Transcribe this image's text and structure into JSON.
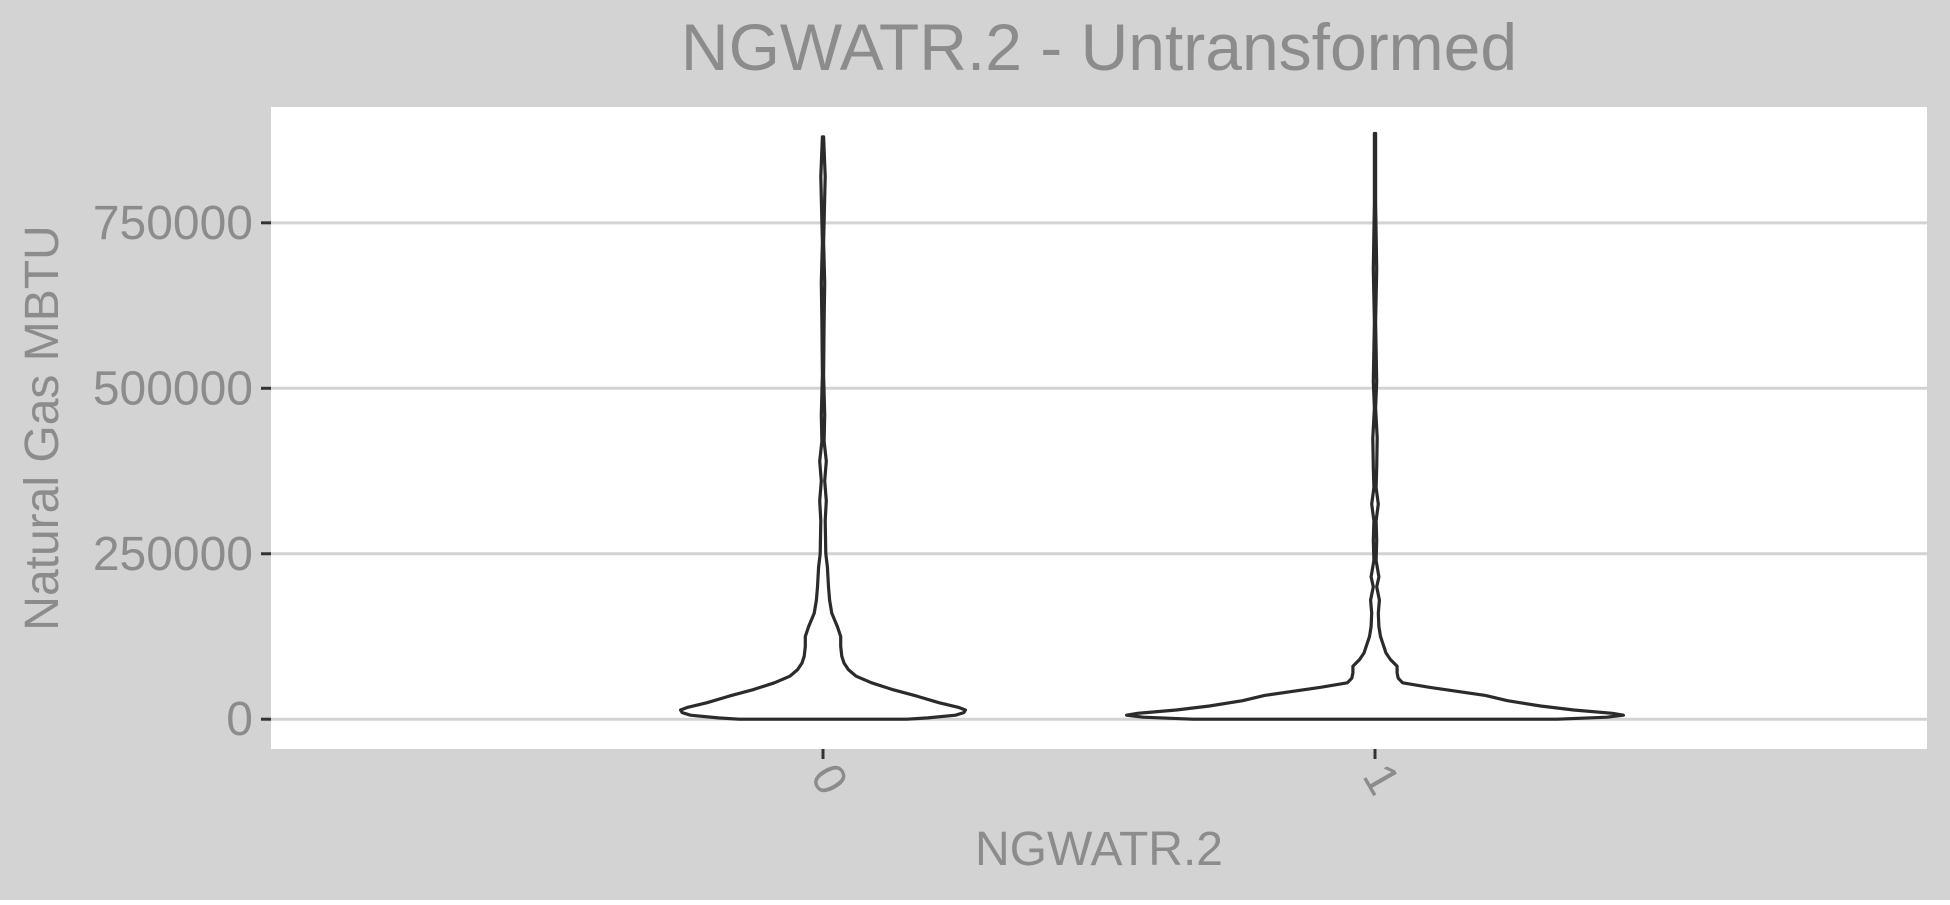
{
  "chart_data": {
    "type": "violin",
    "title": "NGWATR.2 - Untransformed",
    "xlabel": "NGWATR.2",
    "ylabel": "Natural Gas MBTU",
    "categories": [
      "0",
      "1"
    ],
    "yticks": [
      0,
      250000,
      500000,
      750000
    ],
    "ytick_labels": [
      "0",
      "250000",
      "500000",
      "750000"
    ],
    "ylim": [
      -45000,
      925000
    ],
    "grid": true,
    "colors": {
      "panel_background": "#d3d3d3",
      "plot_background": "#ffffff",
      "grid": "#d3d3d3",
      "violin_outline": "#2b2b2b",
      "text": "#8c8c8c",
      "tick": "#333333"
    },
    "series": [
      {
        "category": "0",
        "y_min": 0,
        "y_max": 880000,
        "density_profile": [
          {
            "y": 0,
            "half_width": 0.152
          },
          {
            "y": 2000,
            "half_width": 0.19
          },
          {
            "y": 6000,
            "half_width": 0.24
          },
          {
            "y": 10000,
            "half_width": 0.255
          },
          {
            "y": 14000,
            "half_width": 0.258
          },
          {
            "y": 18000,
            "half_width": 0.245
          },
          {
            "y": 25000,
            "half_width": 0.21
          },
          {
            "y": 35000,
            "half_width": 0.17
          },
          {
            "y": 45000,
            "half_width": 0.125
          },
          {
            "y": 55000,
            "half_width": 0.088
          },
          {
            "y": 65000,
            "half_width": 0.06
          },
          {
            "y": 75000,
            "half_width": 0.046
          },
          {
            "y": 85000,
            "half_width": 0.038
          },
          {
            "y": 95000,
            "half_width": 0.034
          },
          {
            "y": 110000,
            "half_width": 0.032
          },
          {
            "y": 125000,
            "half_width": 0.032
          },
          {
            "y": 140000,
            "half_width": 0.026
          },
          {
            "y": 160000,
            "half_width": 0.016
          },
          {
            "y": 180000,
            "half_width": 0.012
          },
          {
            "y": 200000,
            "half_width": 0.01
          },
          {
            "y": 230000,
            "half_width": 0.008
          },
          {
            "y": 250000,
            "half_width": 0.005
          },
          {
            "y": 300000,
            "half_width": 0.004
          },
          {
            "y": 330000,
            "half_width": 0.006
          },
          {
            "y": 360000,
            "half_width": 0.003
          },
          {
            "y": 390000,
            "half_width": 0.006
          },
          {
            "y": 420000,
            "half_width": 0.002
          },
          {
            "y": 460000,
            "half_width": 0.003
          },
          {
            "y": 520000,
            "half_width": 0.001
          },
          {
            "y": 600000,
            "half_width": 0.002
          },
          {
            "y": 660000,
            "half_width": 0.003
          },
          {
            "y": 720000,
            "half_width": 0.001
          },
          {
            "y": 820000,
            "half_width": 0.004
          },
          {
            "y": 880000,
            "half_width": 0.001
          }
        ]
      },
      {
        "category": "1",
        "y_min": 0,
        "y_max": 885000,
        "density_profile": [
          {
            "y": 0,
            "half_width": 0.33
          },
          {
            "y": 3000,
            "half_width": 0.42
          },
          {
            "y": 6000,
            "half_width": 0.45
          },
          {
            "y": 9000,
            "half_width": 0.43
          },
          {
            "y": 14000,
            "half_width": 0.36
          },
          {
            "y": 20000,
            "half_width": 0.3
          },
          {
            "y": 28000,
            "half_width": 0.24
          },
          {
            "y": 36000,
            "half_width": 0.2
          },
          {
            "y": 42000,
            "half_width": 0.15
          },
          {
            "y": 48000,
            "half_width": 0.1
          },
          {
            "y": 55000,
            "half_width": 0.05
          },
          {
            "y": 62000,
            "half_width": 0.042
          },
          {
            "y": 70000,
            "half_width": 0.04
          },
          {
            "y": 80000,
            "half_width": 0.04
          },
          {
            "y": 90000,
            "half_width": 0.028
          },
          {
            "y": 100000,
            "half_width": 0.02
          },
          {
            "y": 110000,
            "half_width": 0.016
          },
          {
            "y": 125000,
            "half_width": 0.01
          },
          {
            "y": 140000,
            "half_width": 0.007
          },
          {
            "y": 160000,
            "half_width": 0.006
          },
          {
            "y": 180000,
            "half_width": 0.008
          },
          {
            "y": 200000,
            "half_width": 0.003
          },
          {
            "y": 215000,
            "half_width": 0.007
          },
          {
            "y": 240000,
            "half_width": 0.002
          },
          {
            "y": 270000,
            "half_width": 0.003
          },
          {
            "y": 300000,
            "half_width": 0.002
          },
          {
            "y": 325000,
            "half_width": 0.006
          },
          {
            "y": 350000,
            "half_width": 0.002
          },
          {
            "y": 380000,
            "half_width": 0.003
          },
          {
            "y": 425000,
            "half_width": 0.004
          },
          {
            "y": 470000,
            "half_width": 0.001
          },
          {
            "y": 510000,
            "half_width": 0.003
          },
          {
            "y": 600000,
            "half_width": 0.001
          },
          {
            "y": 680000,
            "half_width": 0.003
          },
          {
            "y": 780000,
            "half_width": 0.001
          },
          {
            "y": 885000,
            "half_width": 0.001
          }
        ]
      }
    ]
  }
}
